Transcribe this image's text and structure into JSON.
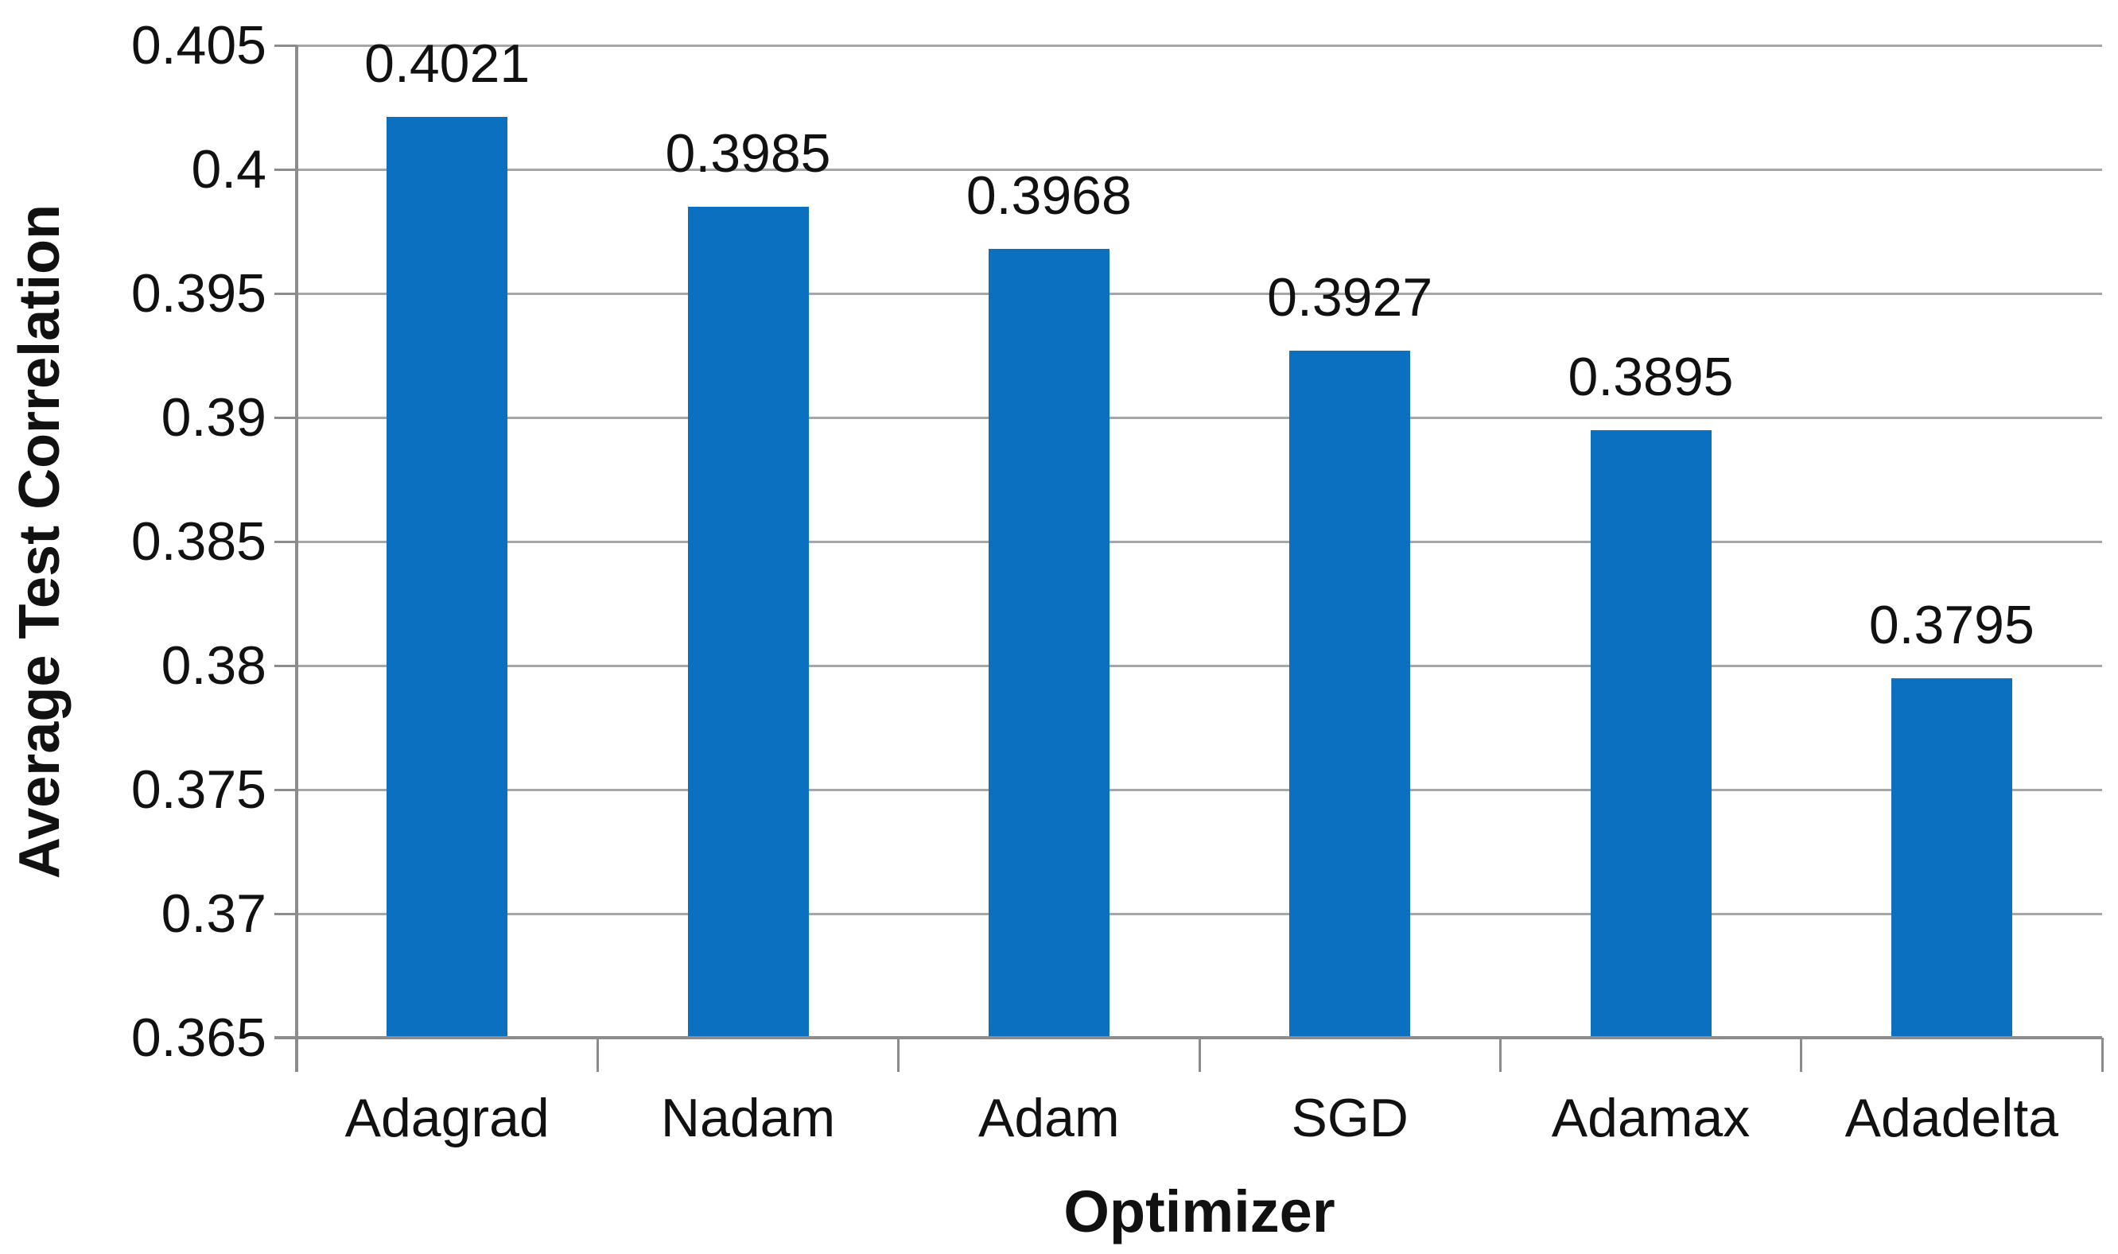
{
  "chart_data": {
    "type": "bar",
    "title": "",
    "categories": [
      "Adagrad",
      "Nadam",
      "Adam",
      "SGD",
      "Adamax",
      "Adadelta"
    ],
    "values": [
      0.4021,
      0.3985,
      0.3968,
      0.3927,
      0.3895,
      0.3795
    ],
    "value_labels": [
      "0.4021",
      "0.3985",
      "0.3968",
      "0.3927",
      "0.3895",
      "0.3795"
    ],
    "xlabel": "Optimizer",
    "ylabel": "Average Test Correlation",
    "ylim": [
      0.365,
      0.405
    ],
    "yticks": [
      "0.405",
      "0.4",
      "0.395",
      "0.39",
      "0.385",
      "0.38",
      "0.375",
      "0.37",
      "0.365"
    ],
    "grid": "horizontal-only",
    "legend": "none",
    "colors": {
      "bar": "#0b70c0",
      "gridline": "#a6a6a6",
      "axis": "#8c8c8c",
      "text": "#111111",
      "background": "#ffffff"
    }
  }
}
